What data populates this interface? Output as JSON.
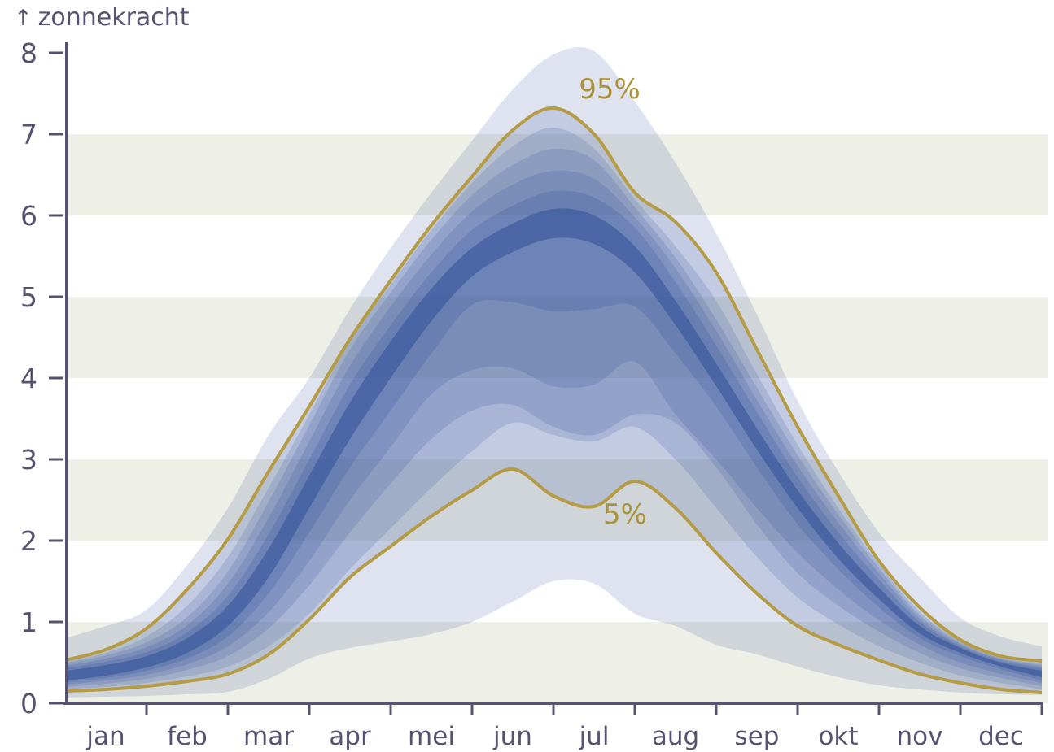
{
  "title": {
    "arrow": "↑",
    "text": "zonnekracht"
  },
  "colors": {
    "background": "#ffffff",
    "stripe": "#eeefe6",
    "axis": "#56526f",
    "tick_label": "#56526f",
    "gold_line": "#b49b44",
    "gold_text": "#ac9339",
    "band_base_rgb": "61,90,158"
  },
  "chart_data": {
    "type": "area",
    "title": "zonnekracht",
    "ylabel": "zonnekracht",
    "xlabel": "",
    "x_unit": "months, 0 = 1 jan, 12 = 31 dec",
    "x": [
      0,
      0.5,
      1,
      1.5,
      2,
      2.5,
      3,
      3.5,
      4,
      4.5,
      5,
      5.5,
      6,
      6.5,
      7,
      7.5,
      8,
      8.5,
      9,
      9.5,
      10,
      10.5,
      11,
      11.5,
      12
    ],
    "ylim": [
      0,
      8.3
    ],
    "y_ticks": [
      0,
      1,
      2,
      3,
      4,
      5,
      6,
      7,
      8
    ],
    "x_tick_months": [
      1,
      2,
      3,
      4,
      5,
      6,
      7,
      8,
      9,
      10,
      11,
      12
    ],
    "month_labels": [
      "jan",
      "feb",
      "mar",
      "apr",
      "mei",
      "jun",
      "jul",
      "aug",
      "sep",
      "okt",
      "nov",
      "dec"
    ],
    "background_stripes_y": [
      [
        0,
        1
      ],
      [
        2,
        3
      ],
      [
        4,
        5
      ],
      [
        6,
        7
      ]
    ],
    "series": [
      {
        "name": "min",
        "values": [
          0.07,
          0.08,
          0.09,
          0.11,
          0.14,
          0.3,
          0.55,
          0.68,
          0.76,
          0.85,
          1.0,
          1.25,
          1.5,
          1.47,
          1.1,
          0.95,
          0.72,
          0.6,
          0.45,
          0.32,
          0.22,
          0.17,
          0.13,
          0.11,
          0.1
        ]
      },
      {
        "name": "p5",
        "values": [
          0.15,
          0.17,
          0.21,
          0.27,
          0.36,
          0.6,
          1.03,
          1.55,
          1.93,
          2.3,
          2.62,
          2.88,
          2.55,
          2.42,
          2.73,
          2.4,
          1.85,
          1.35,
          0.95,
          0.72,
          0.53,
          0.36,
          0.25,
          0.17,
          0.13
        ]
      },
      {
        "name": "p10",
        "values": [
          0.17,
          0.2,
          0.25,
          0.33,
          0.45,
          0.7,
          1.1,
          1.65,
          2.15,
          2.65,
          3.1,
          3.45,
          3.3,
          3.22,
          3.4,
          3.0,
          2.4,
          1.8,
          1.3,
          0.97,
          0.7,
          0.5,
          0.34,
          0.25,
          0.17
        ]
      },
      {
        "name": "p20",
        "values": [
          0.2,
          0.24,
          0.3,
          0.41,
          0.58,
          0.92,
          1.45,
          2.1,
          2.7,
          3.25,
          3.6,
          3.67,
          3.4,
          3.3,
          3.55,
          3.45,
          2.9,
          2.2,
          1.6,
          1.2,
          0.88,
          0.62,
          0.43,
          0.31,
          0.21
        ]
      },
      {
        "name": "p30",
        "values": [
          0.23,
          0.28,
          0.35,
          0.48,
          0.7,
          1.12,
          1.75,
          2.5,
          3.15,
          3.8,
          4.1,
          4.12,
          3.9,
          3.92,
          4.2,
          3.55,
          3.0,
          2.4,
          1.85,
          1.4,
          1.02,
          0.72,
          0.5,
          0.36,
          0.25
        ]
      },
      {
        "name": "p40",
        "values": [
          0.26,
          0.31,
          0.4,
          0.55,
          0.82,
          1.35,
          2.1,
          2.9,
          3.6,
          4.3,
          4.9,
          4.93,
          4.82,
          4.85,
          4.88,
          4.3,
          3.65,
          2.9,
          2.2,
          1.65,
          1.18,
          0.8,
          0.58,
          0.42,
          0.28
        ]
      },
      {
        "name": "p45",
        "values": [
          0.28,
          0.34,
          0.44,
          0.62,
          0.95,
          1.55,
          2.4,
          3.25,
          4.0,
          4.7,
          5.25,
          5.55,
          5.72,
          5.65,
          5.3,
          4.65,
          3.9,
          3.12,
          2.4,
          1.78,
          1.28,
          0.86,
          0.62,
          0.45,
          0.32
        ]
      },
      {
        "name": "p55",
        "values": [
          0.4,
          0.47,
          0.58,
          0.8,
          1.2,
          1.9,
          2.8,
          3.7,
          4.45,
          5.1,
          5.6,
          5.9,
          6.08,
          6.0,
          5.62,
          4.95,
          4.18,
          3.38,
          2.62,
          1.97,
          1.42,
          0.95,
          0.68,
          0.5,
          0.4
        ]
      },
      {
        "name": "p60",
        "values": [
          0.43,
          0.51,
          0.63,
          0.87,
          1.32,
          2.08,
          3.0,
          3.92,
          4.65,
          5.3,
          5.82,
          6.12,
          6.3,
          6.22,
          5.85,
          5.18,
          4.4,
          3.58,
          2.78,
          2.1,
          1.52,
          1.0,
          0.7,
          0.52,
          0.43
        ]
      },
      {
        "name": "p70",
        "values": [
          0.46,
          0.55,
          0.69,
          0.96,
          1.47,
          2.28,
          3.22,
          4.15,
          4.88,
          5.52,
          6.05,
          6.38,
          6.55,
          6.45,
          5.98,
          5.35,
          4.58,
          3.73,
          2.92,
          2.22,
          1.6,
          1.04,
          0.72,
          0.54,
          0.45
        ]
      },
      {
        "name": "p80",
        "values": [
          0.49,
          0.59,
          0.75,
          1.06,
          1.62,
          2.48,
          3.42,
          4.35,
          5.05,
          5.7,
          6.25,
          6.62,
          6.82,
          6.68,
          6.1,
          5.48,
          4.72,
          3.88,
          3.05,
          2.32,
          1.66,
          1.08,
          0.74,
          0.55,
          0.47
        ]
      },
      {
        "name": "p90",
        "values": [
          0.51,
          0.62,
          0.82,
          1.2,
          1.8,
          2.65,
          3.55,
          4.45,
          5.15,
          5.82,
          6.4,
          6.85,
          7.08,
          6.82,
          6.2,
          5.62,
          4.95,
          4.05,
          3.18,
          2.4,
          1.71,
          1.12,
          0.76,
          0.56,
          0.49
        ]
      },
      {
        "name": "p95",
        "values": [
          0.53,
          0.66,
          0.92,
          1.4,
          2.02,
          2.85,
          3.65,
          4.48,
          5.2,
          5.88,
          6.48,
          7.05,
          7.32,
          7.0,
          6.28,
          5.92,
          5.3,
          4.35,
          3.4,
          2.55,
          1.75,
          1.18,
          0.78,
          0.58,
          0.52
        ]
      },
      {
        "name": "max",
        "values": [
          0.8,
          0.95,
          1.15,
          1.7,
          2.4,
          3.3,
          4.0,
          4.85,
          5.6,
          6.28,
          6.92,
          7.55,
          7.98,
          8.02,
          7.4,
          6.65,
          5.78,
          4.78,
          3.72,
          2.85,
          2.1,
          1.55,
          1.05,
          0.82,
          0.7
        ]
      }
    ],
    "bands": [
      {
        "lower": "min",
        "upper": "max",
        "alpha": 0.17
      },
      {
        "lower": "p5",
        "upper": "p95",
        "alpha": 0.17
      },
      {
        "lower": "p10",
        "upper": "p90",
        "alpha": 0.19
      },
      {
        "lower": "p20",
        "upper": "p80",
        "alpha": 0.2
      },
      {
        "lower": "p30",
        "upper": "p70",
        "alpha": 0.22
      },
      {
        "lower": "p40",
        "upper": "p60",
        "alpha": 0.26
      },
      {
        "lower": "p45",
        "upper": "p55",
        "alpha": 0.69
      }
    ],
    "lines": [
      {
        "series": "p95",
        "label": "95%",
        "label_x_month": 6.69,
        "label_value": 7.55
      },
      {
        "series": "p5",
        "label": "5%",
        "label_x_month": 6.88,
        "label_value": 2.32
      }
    ],
    "legend": "none",
    "grid": "off"
  }
}
